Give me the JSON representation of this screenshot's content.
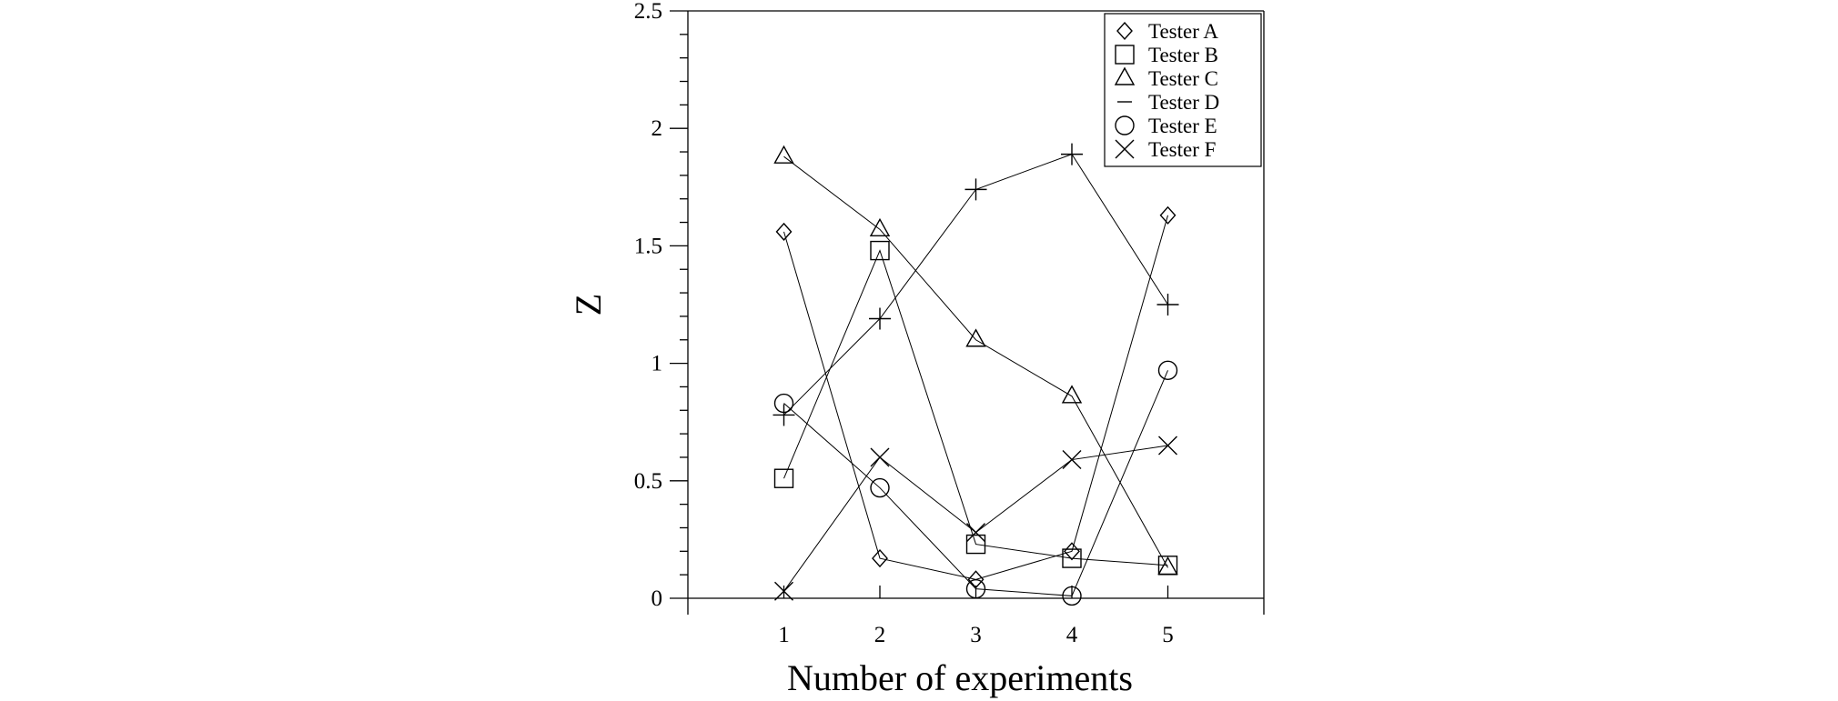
{
  "chart_data": {
    "type": "line",
    "title": "",
    "xlabel": "Number of experiments",
    "ylabel": "Z",
    "x": [
      1,
      2,
      3,
      4,
      5
    ],
    "xlim": [
      0,
      6
    ],
    "ylim": [
      0,
      2.5
    ],
    "xticks": [
      "1",
      "2",
      "3",
      "4",
      "5"
    ],
    "yticks": [
      "0",
      "0.5",
      "1",
      "1.5",
      "2",
      "2.5"
    ],
    "grid": false,
    "legend_position": "top-right",
    "series": [
      {
        "name": "Tester A",
        "marker": "diamond",
        "values": [
          1.56,
          0.17,
          0.08,
          0.2,
          1.63
        ]
      },
      {
        "name": "Tester B",
        "marker": "square",
        "values": [
          0.51,
          1.48,
          0.23,
          0.17,
          0.14
        ]
      },
      {
        "name": "Tester C",
        "marker": "triangle",
        "values": [
          1.88,
          1.57,
          1.1,
          0.86,
          0.13
        ]
      },
      {
        "name": "Tester D",
        "marker": "plus",
        "values": [
          0.78,
          1.19,
          1.74,
          1.89,
          1.25
        ]
      },
      {
        "name": "Tester E",
        "marker": "circle",
        "values": [
          0.83,
          0.47,
          0.04,
          0.01,
          0.97
        ]
      },
      {
        "name": "Tester F",
        "marker": "x",
        "values": [
          0.03,
          0.6,
          0.28,
          0.59,
          0.65
        ]
      }
    ]
  }
}
